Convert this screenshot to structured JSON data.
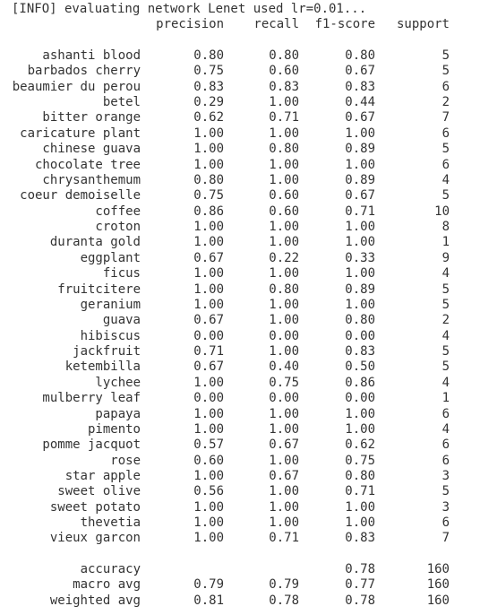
{
  "info_line": "[INFO] evaluating network Lenet used lr=0.01...",
  "headers": {
    "precision": "precision",
    "recall": "recall",
    "f1_score": "f1-score",
    "support": "support"
  },
  "rows": [
    {
      "label": "ashanti blood",
      "precision": "0.80",
      "recall": "0.80",
      "f1": "0.80",
      "support": "5"
    },
    {
      "label": "barbados cherry",
      "precision": "0.75",
      "recall": "0.60",
      "f1": "0.67",
      "support": "5"
    },
    {
      "label": "beaumier du perou",
      "precision": "0.83",
      "recall": "0.83",
      "f1": "0.83",
      "support": "6"
    },
    {
      "label": "betel",
      "precision": "0.29",
      "recall": "1.00",
      "f1": "0.44",
      "support": "2"
    },
    {
      "label": "bitter orange",
      "precision": "0.62",
      "recall": "0.71",
      "f1": "0.67",
      "support": "7"
    },
    {
      "label": "caricature plant",
      "precision": "1.00",
      "recall": "1.00",
      "f1": "1.00",
      "support": "6"
    },
    {
      "label": "chinese guava",
      "precision": "1.00",
      "recall": "0.80",
      "f1": "0.89",
      "support": "5"
    },
    {
      "label": "chocolate tree",
      "precision": "1.00",
      "recall": "1.00",
      "f1": "1.00",
      "support": "6"
    },
    {
      "label": "chrysanthemum",
      "precision": "0.80",
      "recall": "1.00",
      "f1": "0.89",
      "support": "4"
    },
    {
      "label": "coeur demoiselle",
      "precision": "0.75",
      "recall": "0.60",
      "f1": "0.67",
      "support": "5"
    },
    {
      "label": "coffee",
      "precision": "0.86",
      "recall": "0.60",
      "f1": "0.71",
      "support": "10"
    },
    {
      "label": "croton",
      "precision": "1.00",
      "recall": "1.00",
      "f1": "1.00",
      "support": "8"
    },
    {
      "label": "duranta gold",
      "precision": "1.00",
      "recall": "1.00",
      "f1": "1.00",
      "support": "1"
    },
    {
      "label": "eggplant",
      "precision": "0.67",
      "recall": "0.22",
      "f1": "0.33",
      "support": "9"
    },
    {
      "label": "ficus",
      "precision": "1.00",
      "recall": "1.00",
      "f1": "1.00",
      "support": "4"
    },
    {
      "label": "fruitcitere",
      "precision": "1.00",
      "recall": "0.80",
      "f1": "0.89",
      "support": "5"
    },
    {
      "label": "geranium",
      "precision": "1.00",
      "recall": "1.00",
      "f1": "1.00",
      "support": "5"
    },
    {
      "label": "guava",
      "precision": "0.67",
      "recall": "1.00",
      "f1": "0.80",
      "support": "2"
    },
    {
      "label": "hibiscus",
      "precision": "0.00",
      "recall": "0.00",
      "f1": "0.00",
      "support": "4"
    },
    {
      "label": "jackfruit",
      "precision": "0.71",
      "recall": "1.00",
      "f1": "0.83",
      "support": "5"
    },
    {
      "label": "ketembilla",
      "precision": "0.67",
      "recall": "0.40",
      "f1": "0.50",
      "support": "5"
    },
    {
      "label": "lychee",
      "precision": "1.00",
      "recall": "0.75",
      "f1": "0.86",
      "support": "4"
    },
    {
      "label": "mulberry leaf",
      "precision": "0.00",
      "recall": "0.00",
      "f1": "0.00",
      "support": "1"
    },
    {
      "label": "papaya",
      "precision": "1.00",
      "recall": "1.00",
      "f1": "1.00",
      "support": "6"
    },
    {
      "label": "pimento",
      "precision": "1.00",
      "recall": "1.00",
      "f1": "1.00",
      "support": "4"
    },
    {
      "label": "pomme jacquot",
      "precision": "0.57",
      "recall": "0.67",
      "f1": "0.62",
      "support": "6"
    },
    {
      "label": "rose",
      "precision": "0.60",
      "recall": "1.00",
      "f1": "0.75",
      "support": "6"
    },
    {
      "label": "star apple",
      "precision": "1.00",
      "recall": "0.67",
      "f1": "0.80",
      "support": "3"
    },
    {
      "label": "sweet olive",
      "precision": "0.56",
      "recall": "1.00",
      "f1": "0.71",
      "support": "5"
    },
    {
      "label": "sweet potato",
      "precision": "1.00",
      "recall": "1.00",
      "f1": "1.00",
      "support": "3"
    },
    {
      "label": "thevetia",
      "precision": "1.00",
      "recall": "1.00",
      "f1": "1.00",
      "support": "6"
    },
    {
      "label": "vieux garcon",
      "precision": "1.00",
      "recall": "0.71",
      "f1": "0.83",
      "support": "7"
    }
  ],
  "summary": [
    {
      "label": "accuracy",
      "precision": "",
      "recall": "",
      "f1": "0.78",
      "support": "160"
    },
    {
      "label": "macro avg",
      "precision": "0.79",
      "recall": "0.79",
      "f1": "0.77",
      "support": "160"
    },
    {
      "label": "weighted avg",
      "precision": "0.81",
      "recall": "0.78",
      "f1": "0.78",
      "support": "160"
    }
  ]
}
